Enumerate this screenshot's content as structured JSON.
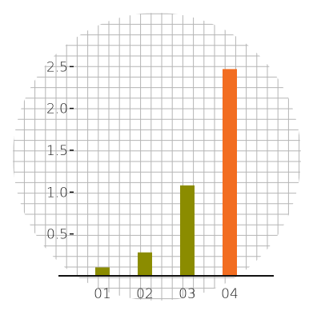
{
  "chart_data": {
    "type": "bar",
    "categories": [
      "01",
      "02",
      "03",
      "04"
    ],
    "values": [
      0.1,
      0.28,
      1.08,
      2.47
    ],
    "bar_colors": [
      "#8b8c00",
      "#8b8c00",
      "#8b8c00",
      "#f26d21"
    ],
    "y_ticks": [
      "0.5",
      "1.0",
      "1.5",
      "2.0",
      "2.5"
    ],
    "ylim": [
      0,
      2.5
    ],
    "grid": true,
    "grid_color": "#b5b5b5",
    "axis_color": "#111111",
    "title": "",
    "xlabel": "",
    "ylabel": ""
  }
}
